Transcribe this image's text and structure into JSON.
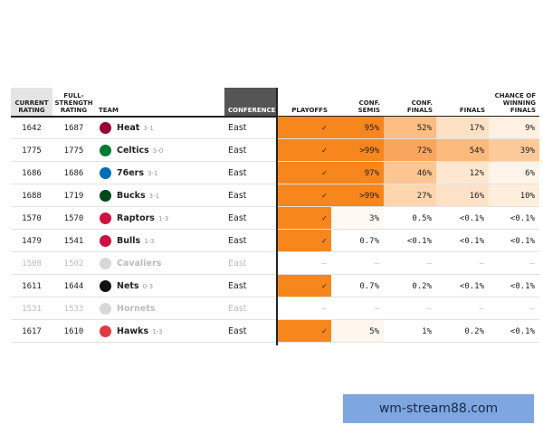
{
  "table": {
    "headers": [
      [
        "CURRENT",
        "RATING"
      ],
      [
        "FULL-",
        "STRENGTH",
        "RATING"
      ],
      [
        "TEAM"
      ],
      [
        "CONFERENCE"
      ],
      [
        "PLAYOFFS"
      ],
      [
        "CONF. SEMIS"
      ],
      [
        "CONF.",
        "FINALS"
      ],
      [
        "FINALS"
      ],
      [
        "CHANCE OF",
        "WINNING",
        "FINALS"
      ]
    ],
    "rows": [
      {
        "current": 1642,
        "full": 1687,
        "team": "Heat",
        "record": "3-1",
        "conference": "East",
        "odds": [
          "✓",
          "95%",
          "52%",
          "17%",
          "9%"
        ],
        "colors": [
          "#f7861c",
          "#f7861c",
          "#fbbd82",
          "#fee0c3",
          "#fff0e2"
        ],
        "logo": "#98002e"
      },
      {
        "current": 1775,
        "full": 1775,
        "team": "Celtics",
        "record": "3-0",
        "conference": "East",
        "odds": [
          "✓",
          ">99%",
          "72%",
          "54%",
          "39%"
        ],
        "colors": [
          "#f7861c",
          "#f7861c",
          "#f9a55d",
          "#fbb97b",
          "#fcca99"
        ],
        "logo": "#007a33"
      },
      {
        "current": 1686,
        "full": 1686,
        "team": "76ers",
        "record": "3-1",
        "conference": "East",
        "odds": [
          "✓",
          "97%",
          "46%",
          "12%",
          "6%"
        ],
        "colors": [
          "#f7861c",
          "#f7861c",
          "#fcc591",
          "#fee7d0",
          "#fff4e9"
        ],
        "logo": "#006bb6"
      },
      {
        "current": 1688,
        "full": 1719,
        "team": "Bucks",
        "record": "3-1",
        "conference": "East",
        "odds": [
          "✓",
          ">99%",
          "27%",
          "16%",
          "10%"
        ],
        "colors": [
          "#f7861c",
          "#f7861c",
          "#fdd6b0",
          "#fee2c7",
          "#ffeedb"
        ],
        "logo": "#00471b"
      },
      {
        "current": 1570,
        "full": 1570,
        "team": "Raptors",
        "record": "1-3",
        "conference": "East",
        "odds": [
          "✓",
          "3%",
          "0.5%",
          "<0.1%",
          "<0.1%"
        ],
        "colors": [
          "#f7861c",
          "#fff9f3",
          "#ffffff",
          "#ffffff",
          "#ffffff"
        ],
        "logo": "#ce1141"
      },
      {
        "current": 1479,
        "full": 1541,
        "team": "Bulls",
        "record": "1-3",
        "conference": "East",
        "odds": [
          "✓",
          "0.7%",
          "<0.1%",
          "<0.1%",
          "<0.1%"
        ],
        "colors": [
          "#f7861c",
          "#ffffff",
          "#ffffff",
          "#ffffff",
          "#ffffff"
        ],
        "logo": "#ce1141"
      },
      {
        "current": 1508,
        "full": 1502,
        "team": "Cavaliers",
        "conference": "East",
        "odds": [
          "—",
          "—",
          "—",
          "—",
          "—"
        ],
        "colors": [
          "#ffffff",
          "#ffffff",
          "#ffffff",
          "#ffffff",
          "#ffffff"
        ],
        "logo": "#d8d8d8",
        "eliminated": true
      },
      {
        "current": 1611,
        "full": 1644,
        "team": "Nets",
        "record": "0-3",
        "conference": "East",
        "odds": [
          "✓",
          "0.7%",
          "0.2%",
          "<0.1%",
          "<0.1%"
        ],
        "colors": [
          "#f7861c",
          "#ffffff",
          "#ffffff",
          "#ffffff",
          "#ffffff"
        ],
        "logo": "#111111"
      },
      {
        "current": 1531,
        "full": 1533,
        "team": "Hornets",
        "conference": "East",
        "odds": [
          "—",
          "—",
          "—",
          "—",
          "—"
        ],
        "colors": [
          "#ffffff",
          "#ffffff",
          "#ffffff",
          "#ffffff",
          "#ffffff"
        ],
        "logo": "#d8d8d8",
        "eliminated": true
      },
      {
        "current": 1617,
        "full": 1610,
        "team": "Hawks",
        "record": "1-3",
        "conference": "East",
        "odds": [
          "✓",
          "5%",
          "1%",
          "0.2%",
          "<0.1%"
        ],
        "colors": [
          "#f7861c",
          "#fff6ed",
          "#ffffff",
          "#ffffff",
          "#ffffff"
        ],
        "logo": "#e03a3e"
      }
    ]
  },
  "watermark": "wm-stream88.com"
}
